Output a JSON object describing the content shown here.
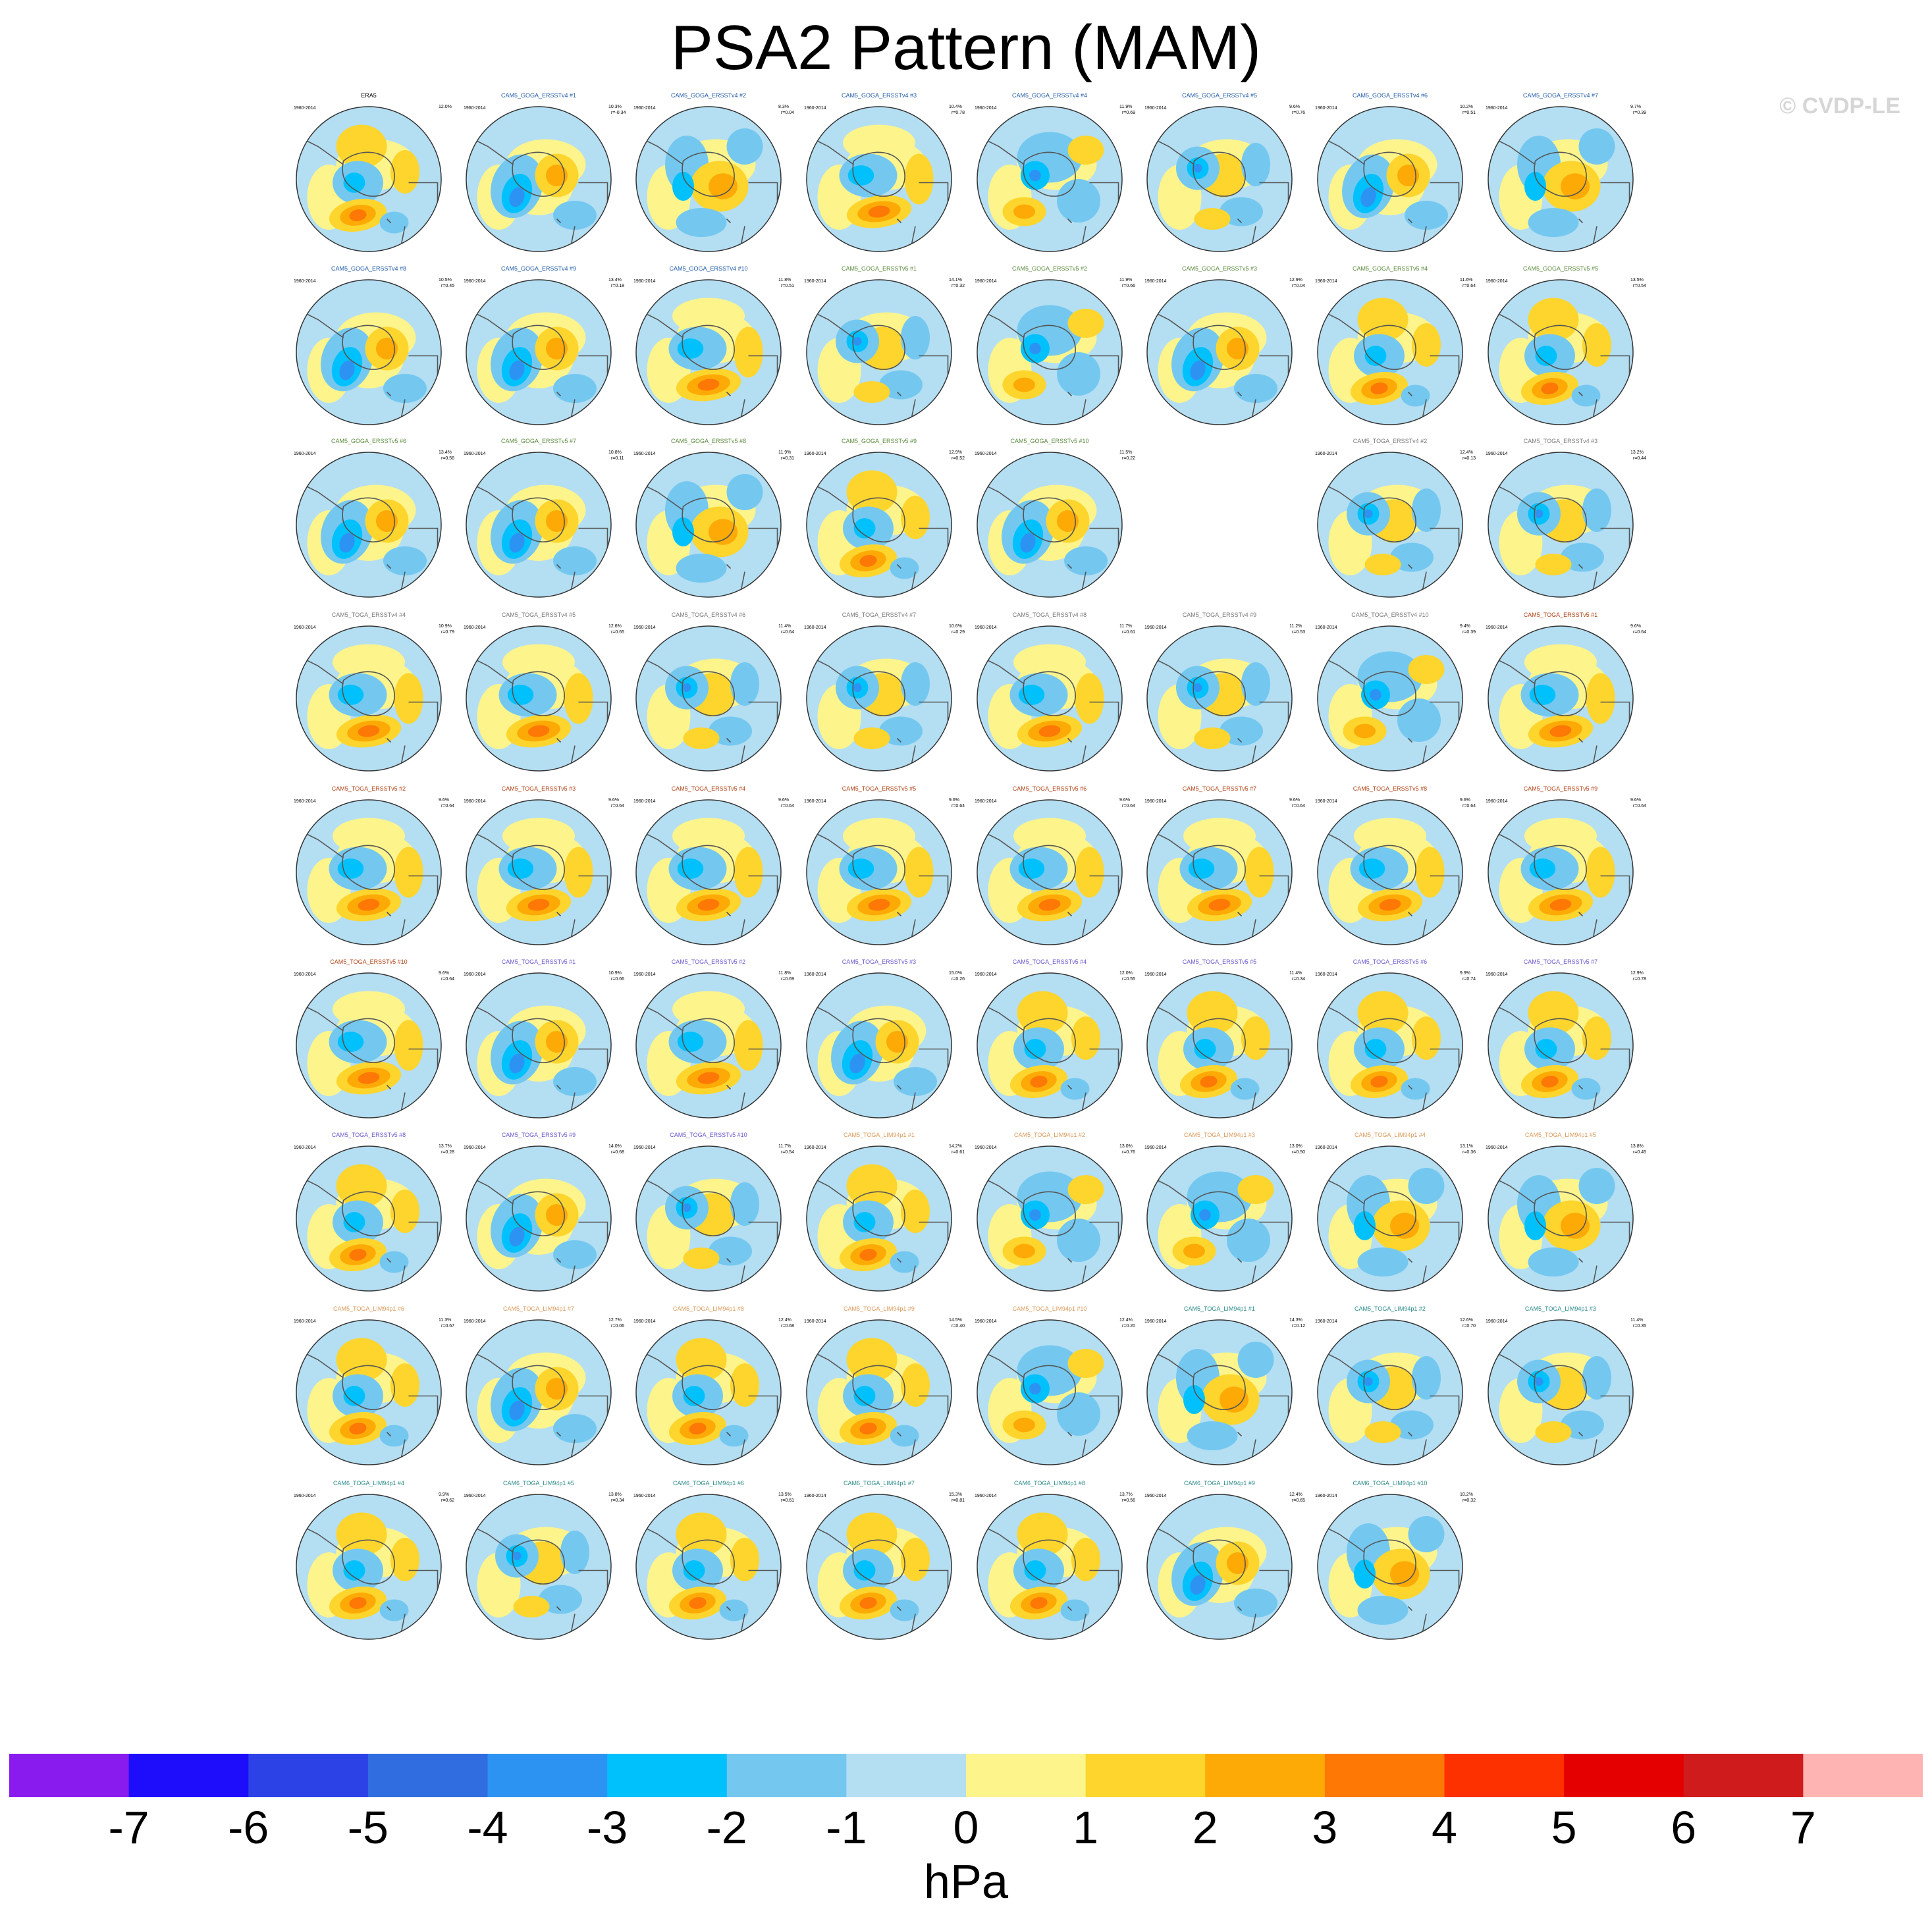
{
  "title": "PSA2 Pattern (MAM)",
  "watermark": "© CVDP-LE",
  "chart_data": {
    "type": "heatmap",
    "title": "PSA2 Pattern (MAM)",
    "projection": "south-polar stereographic",
    "variable": "sea level pressure regression pattern",
    "period": "1960-2014",
    "colorbar": {
      "label": "hPa",
      "ticks": [
        -7,
        -6,
        -5,
        -4,
        -3,
        -2,
        -1,
        0,
        1,
        2,
        3,
        4,
        5,
        6,
        7
      ],
      "colors": [
        "#8a1bef",
        "#1e0dfb",
        "#2c42e6",
        "#2f6de0",
        "#2d93f3",
        "#00c1fc",
        "#74c8f0",
        "#b4def2",
        "#fdf48c",
        "#fdd52d",
        "#fdaa06",
        "#fd7805",
        "#fd3000",
        "#e50000",
        "#cf1b1b",
        "#ffb4b4"
      ]
    },
    "panels": [
      {
        "name": "ERA5",
        "pct": "12.0%",
        "r": "",
        "pattern": 0
      },
      {
        "name": "CAM5_GOGA_ERSSTv4 #1",
        "pct": "10.3%",
        "r": "r=-0.34",
        "pattern": 1
      },
      {
        "name": "CAM5_GOGA_ERSSTv4 #2",
        "pct": "8.3%",
        "r": "r=0.04",
        "pattern": 2
      },
      {
        "name": "CAM5_GOGA_ERSSTv4 #3",
        "pct": "10.4%",
        "r": "r=0.78",
        "pattern": 3
      },
      {
        "name": "CAM5_GOGA_ERSSTv4 #4",
        "pct": "11.9%",
        "r": "r=0.69",
        "pattern": 4
      },
      {
        "name": "CAM5_GOGA_ERSSTv4 #5",
        "pct": "9.6%",
        "r": "r=0.76",
        "pattern": 5
      },
      {
        "name": "CAM5_GOGA_ERSSTv4 #6",
        "pct": "10.2%",
        "r": "r=0.51",
        "pattern": 1
      },
      {
        "name": "CAM5_GOGA_ERSSTv4 #7",
        "pct": "9.7%",
        "r": "r=0.39",
        "pattern": 2
      },
      {
        "name": "CAM5_GOGA_ERSSTv4 #8",
        "pct": "10.5%",
        "r": "r=0.45",
        "pattern": 1
      },
      {
        "name": "CAM5_GOGA_ERSSTv4 #9",
        "pct": "13.4%",
        "r": "r=0.18",
        "pattern": 1
      },
      {
        "name": "CAM5_GOGA_ERSSTv4 #10",
        "pct": "11.8%",
        "r": "r=0.51",
        "pattern": 3
      },
      {
        "name": "CAM5_GOGA_ERSSTv5 #1",
        "pct": "14.1%",
        "r": "r=0.32",
        "pattern": 5
      },
      {
        "name": "CAM5_GOGA_ERSSTv5 #2",
        "pct": "11.9%",
        "r": "r=0.66",
        "pattern": 4
      },
      {
        "name": "CAM5_GOGA_ERSSTv5 #3",
        "pct": "12.9%",
        "r": "r=0.04",
        "pattern": 1
      },
      {
        "name": "CAM5_GOGA_ERSSTv5 #4",
        "pct": "11.6%",
        "r": "r=0.64",
        "pattern": 0
      },
      {
        "name": "CAM5_GOGA_ERSSTv5 #5",
        "pct": "13.5%",
        "r": "r=0.54",
        "pattern": 0
      },
      {
        "name": "CAM5_GOGA_ERSSTv5 #6",
        "pct": "13.4%",
        "r": "r=0.56",
        "pattern": 1
      },
      {
        "name": "CAM5_GOGA_ERSSTv5 #7",
        "pct": "10.8%",
        "r": "r=0.11",
        "pattern": 1
      },
      {
        "name": "CAM5_GOGA_ERSSTv5 #8",
        "pct": "11.9%",
        "r": "r=0.31",
        "pattern": 2
      },
      {
        "name": "CAM5_GOGA_ERSSTv5 #9",
        "pct": "12.9%",
        "r": "r=0.52",
        "pattern": 0
      },
      {
        "name": "CAM5_GOGA_ERSSTv5 #10",
        "pct": "11.5%",
        "r": "r=0.22",
        "pattern": 1
      },
      {
        "name": "CAM5_TOGA_ERSSTv4 #2",
        "pct": "12.4%",
        "r": "r=0.13",
        "pattern": 5
      },
      {
        "name": "CAM5_TOGA_ERSSTv4 #3",
        "pct": "13.2%",
        "r": "r=0.44",
        "pattern": 5
      },
      {
        "name": "CAM5_TOGA_ERSSTv4 #4",
        "pct": "10.9%",
        "r": "r=0.79",
        "pattern": 3
      },
      {
        "name": "CAM5_TOGA_ERSSTv4 #5",
        "pct": "12.6%",
        "r": "r=0.65",
        "pattern": 3
      },
      {
        "name": "CAM5_TOGA_ERSSTv4 #6",
        "pct": "11.4%",
        "r": "r=0.64",
        "pattern": 5
      },
      {
        "name": "CAM5_TOGA_ERSSTv4 #7",
        "pct": "10.6%",
        "r": "r=0.29",
        "pattern": 5
      },
      {
        "name": "CAM5_TOGA_ERSSTv4 #8",
        "pct": "11.7%",
        "r": "r=0.61",
        "pattern": 3
      },
      {
        "name": "CAM5_TOGA_ERSSTv4 #9",
        "pct": "11.2%",
        "r": "r=0.53",
        "pattern": 5
      },
      {
        "name": "CAM5_TOGA_ERSSTv4 #10",
        "pct": "9.4%",
        "r": "r=0.39",
        "pattern": 4
      },
      {
        "name": "CAM5_TOGA_ERSSTv5 #1",
        "pct": "9.6%",
        "r": "r=0.64",
        "pattern": 3
      },
      {
        "name": "CAM5_TOGA_ERSSTv5 #2",
        "pct": "9.6%",
        "r": "r=0.64",
        "pattern": 3
      },
      {
        "name": "CAM5_TOGA_ERSSTv5 #3",
        "pct": "9.6%",
        "r": "r=0.64",
        "pattern": 3
      },
      {
        "name": "CAM5_TOGA_ERSSTv5 #4",
        "pct": "9.6%",
        "r": "r=0.64",
        "pattern": 3
      },
      {
        "name": "CAM5_TOGA_ERSSTv5 #5",
        "pct": "9.6%",
        "r": "r=0.64",
        "pattern": 3
      },
      {
        "name": "CAM5_TOGA_ERSSTv5 #6",
        "pct": "9.6%",
        "r": "r=0.64",
        "pattern": 3
      },
      {
        "name": "CAM5_TOGA_ERSSTv5 #7",
        "pct": "9.6%",
        "r": "r=0.64",
        "pattern": 3
      },
      {
        "name": "CAM5_TOGA_ERSSTv5 #8",
        "pct": "9.6%",
        "r": "r=0.64",
        "pattern": 3
      },
      {
        "name": "CAM5_TOGA_ERSSTv5 #9",
        "pct": "9.6%",
        "r": "r=0.64",
        "pattern": 3
      },
      {
        "name": "CAM5_TOGA_ERSSTv5 #10",
        "pct": "9.6%",
        "r": "r=0.64",
        "pattern": 3
      },
      {
        "name": "CAM5_TOGA_ERSSTv5 #1",
        "pct": "10.9%",
        "r": "r=0.66",
        "pattern": 1
      },
      {
        "name": "CAM5_TOGA_ERSSTv5 #2",
        "pct": "11.8%",
        "r": "r=0.69",
        "pattern": 3
      },
      {
        "name": "CAM5_TOGA_ERSSTv5 #3",
        "pct": "15.0%",
        "r": "r=0.26",
        "pattern": 1
      },
      {
        "name": "CAM5_TOGA_ERSSTv5 #4",
        "pct": "12.0%",
        "r": "r=0.55",
        "pattern": 0
      },
      {
        "name": "CAM5_TOGA_ERSSTv5 #5",
        "pct": "11.4%",
        "r": "r=0.34",
        "pattern": 0
      },
      {
        "name": "CAM5_TOGA_ERSSTv5 #6",
        "pct": "9.9%",
        "r": "r=0.74",
        "pattern": 0
      },
      {
        "name": "CAM5_TOGA_ERSSTv5 #7",
        "pct": "12.9%",
        "r": "r=0.78",
        "pattern": 0
      },
      {
        "name": "CAM5_TOGA_ERSSTv5 #8",
        "pct": "13.7%",
        "r": "r=0.28",
        "pattern": 0
      },
      {
        "name": "CAM5_TOGA_ERSSTv5 #9",
        "pct": "14.0%",
        "r": "r=0.68",
        "pattern": 1
      },
      {
        "name": "CAM5_TOGA_ERSSTv5 #10",
        "pct": "11.7%",
        "r": "r=0.54",
        "pattern": 5
      },
      {
        "name": "CAM5_TOGA_LIM94p1 #1",
        "pct": "14.2%",
        "r": "r=0.61",
        "pattern": 0
      },
      {
        "name": "CAM5_TOGA_LIM94p1 #2",
        "pct": "13.0%",
        "r": "r=0.76",
        "pattern": 4
      },
      {
        "name": "CAM5_TOGA_LIM94p1 #3",
        "pct": "13.0%",
        "r": "r=0.50",
        "pattern": 4
      },
      {
        "name": "CAM5_TOGA_LIM94p1 #4",
        "pct": "13.1%",
        "r": "r=0.36",
        "pattern": 2
      },
      {
        "name": "CAM5_TOGA_LIM94p1 #5",
        "pct": "13.8%",
        "r": "r=0.45",
        "pattern": 2
      },
      {
        "name": "CAM5_TOGA_LIM94p1 #6",
        "pct": "11.3%",
        "r": "r=0.67",
        "pattern": 0
      },
      {
        "name": "CAM5_TOGA_LIM94p1 #7",
        "pct": "12.7%",
        "r": "r=0.06",
        "pattern": 1
      },
      {
        "name": "CAM5_TOGA_LIM94p1 #8",
        "pct": "12.4%",
        "r": "r=0.68",
        "pattern": 0
      },
      {
        "name": "CAM5_TOGA_LIM94p1 #9",
        "pct": "14.5%",
        "r": "r=0.40",
        "pattern": 0
      },
      {
        "name": "CAM5_TOGA_LIM94p1 #10",
        "pct": "12.4%",
        "r": "r=0.20",
        "pattern": 4
      },
      {
        "name": "CAM5_TOGA_LIM94p1 #1",
        "pct": "14.3%",
        "r": "r=0.12",
        "pattern": 2
      },
      {
        "name": "CAM5_TOGA_LIM94p1 #2",
        "pct": "12.6%",
        "r": "r=0.70",
        "pattern": 5
      },
      {
        "name": "CAM5_TOGA_LIM94p1 #3",
        "pct": "11.4%",
        "r": "r=0.35",
        "pattern": 5
      },
      {
        "name": "CAM6_TOGA_LIM94p1 #4",
        "pct": "9.9%",
        "r": "r=0.62",
        "pattern": 0
      },
      {
        "name": "CAM6_TOGA_LIM94p1 #5",
        "pct": "13.8%",
        "r": "r=0.34",
        "pattern": 5
      },
      {
        "name": "CAM6_TOGA_LIM94p1 #6",
        "pct": "13.5%",
        "r": "r=0.61",
        "pattern": 0
      },
      {
        "name": "CAM6_TOGA_LIM94p1 #7",
        "pct": "15.3%",
        "r": "r=0.81",
        "pattern": 0
      },
      {
        "name": "CAM6_TOGA_LIM94p1 #8",
        "pct": "13.7%",
        "r": "r=0.56",
        "pattern": 0
      },
      {
        "name": "CAM6_TOGA_LIM94p1 #9",
        "pct": "12.4%",
        "r": "r=0.65",
        "pattern": 1
      },
      {
        "name": "CAM6_TOGA_LIM94p1 #10",
        "pct": "10.2%",
        "r": "r=0.32",
        "pattern": 2
      }
    ],
    "panel_title_colors": [
      "#000000",
      "#1f5aa6",
      "#1f5aa6",
      "#1f5aa6",
      "#1f5aa6",
      "#1f5aa6",
      "#1f5aa6",
      "#1f5aa6",
      "#1f5aa6",
      "#1f5aa6",
      "#1f5aa6",
      "#5a8a3c",
      "#5a8a3c",
      "#5a8a3c",
      "#5a8a3c",
      "#5a8a3c",
      "#5a8a3c",
      "#5a8a3c",
      "#5a8a3c",
      "#5a8a3c",
      "#5a8a3c",
      "#7a7a7a",
      "#7a7a7a",
      "#7a7a7a",
      "#7a7a7a",
      "#7a7a7a",
      "#7a7a7a",
      "#7a7a7a",
      "#7a7a7a",
      "#7a7a7a",
      "#b0451a",
      "#b0451a",
      "#b0451a",
      "#b0451a",
      "#b0451a",
      "#b0451a",
      "#b0451a",
      "#b0451a",
      "#b0451a",
      "#b0451a",
      "#6a5acd",
      "#6a5acd",
      "#6a5acd",
      "#6a5acd",
      "#6a5acd",
      "#6a5acd",
      "#6a5acd",
      "#6a5acd",
      "#6a5acd",
      "#6a5acd",
      "#d99a5b",
      "#d99a5b",
      "#d99a5b",
      "#d99a5b",
      "#d99a5b",
      "#d99a5b",
      "#d99a5b",
      "#d99a5b",
      "#d99a5b",
      "#d99a5b",
      "#2c8a8a",
      "#2c8a8a",
      "#2c8a8a",
      "#2c8a8a",
      "#2c8a8a",
      "#2c8a8a",
      "#2c8a8a",
      "#2c8a8a",
      "#2c8a8a",
      "#2c8a8a"
    ]
  }
}
